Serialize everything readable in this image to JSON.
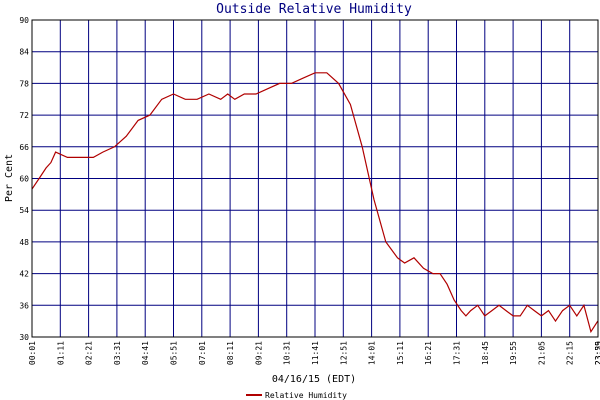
{
  "colors": {
    "frame": "#000000",
    "grid": "#000080",
    "series": "#b00000",
    "title": "#000080"
  },
  "chart_data": {
    "type": "line",
    "title": "Outside Relative Humidity",
    "xlabel": "04/16/15 (EDT)",
    "ylabel": "Per Cent",
    "ylim": [
      30,
      90
    ],
    "yticks": [
      30,
      36,
      42,
      48,
      54,
      60,
      66,
      72,
      78,
      84,
      90
    ],
    "xtick_labels": [
      "00:01",
      "01:11",
      "02:21",
      "03:31",
      "04:41",
      "05:51",
      "07:01",
      "08:11",
      "09:21",
      "10:31",
      "11:41",
      "12:51",
      "14:01",
      "15:11",
      "16:21",
      "17:31",
      "18:45",
      "19:55",
      "21:05",
      "22:15",
      "23:25",
      "23:59"
    ],
    "grid": true,
    "legend": "bottom-center",
    "series": [
      {
        "name": "Relative Humidity",
        "x": [
          0,
          0.3,
          0.6,
          0.8,
          1.0,
          1.5,
          2.0,
          2.3,
          2.6,
          3.0,
          3.5,
          4.0,
          4.5,
          5.0,
          5.5,
          6.0,
          6.5,
          7.0,
          7.5,
          8.0,
          8.3,
          8.6,
          9.0,
          9.5,
          10.0,
          10.5,
          11.0,
          11.5,
          12.0,
          12.5,
          13.0,
          13.5,
          14.0,
          14.5,
          15.0,
          15.5,
          15.8,
          16.2,
          16.6,
          17.0,
          17.3,
          17.6,
          17.9,
          18.2,
          18.4,
          18.6,
          18.9,
          19.2,
          19.5,
          19.8,
          20.1,
          20.4,
          20.7,
          21.0,
          21.3,
          21.6,
          21.9,
          22.2,
          22.5,
          22.8,
          23.1,
          23.4,
          23.7,
          23.99
        ],
        "values": [
          58,
          60,
          62,
          63,
          65,
          64,
          64,
          64,
          64,
          65,
          66,
          68,
          71,
          72,
          75,
          76,
          75,
          75,
          76,
          75,
          76,
          75,
          76,
          76,
          77,
          78,
          78,
          79,
          80,
          80,
          78,
          74,
          66,
          56,
          48,
          45,
          44,
          45,
          43,
          42,
          42,
          40,
          37,
          35,
          34,
          35,
          36,
          34,
          35,
          36,
          35,
          34,
          34,
          36,
          35,
          34,
          35,
          33,
          35,
          36,
          34,
          36,
          31,
          33
        ]
      }
    ]
  }
}
